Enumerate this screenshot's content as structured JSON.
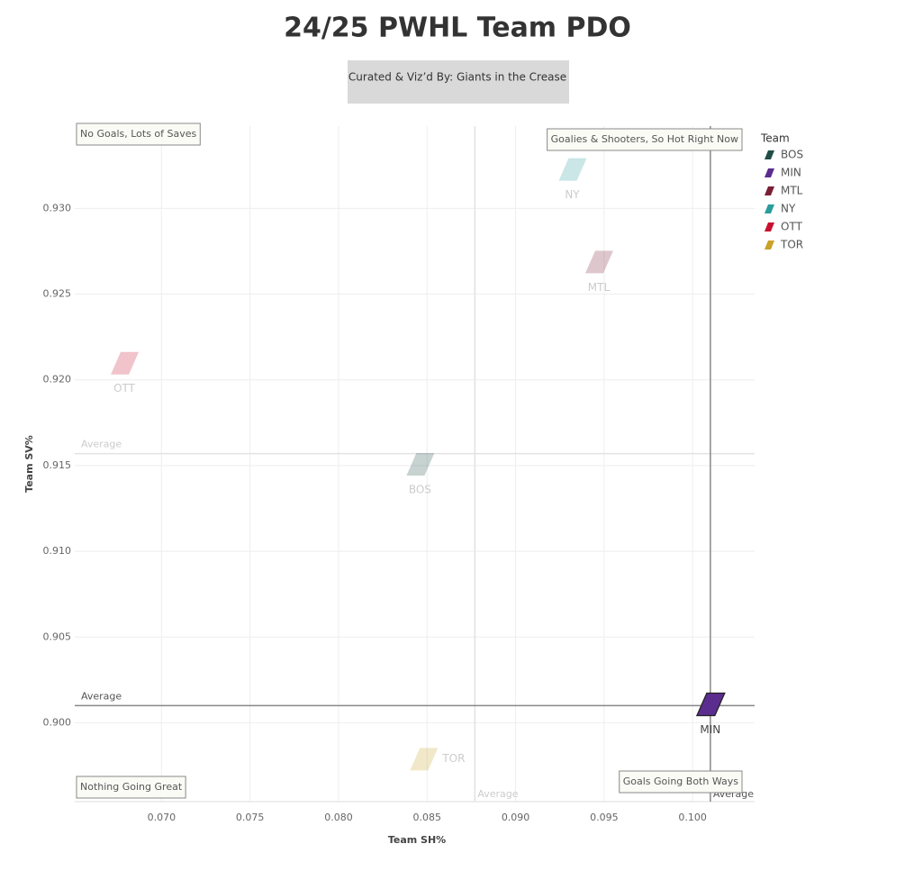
{
  "chart_data": {
    "type": "scatter",
    "title": "24/25 PWHL Team PDO",
    "subtitle": "Curated & Viz’d By: Giants in the Crease",
    "x_label": "Team SH%",
    "y_label": "Team SV%",
    "legend_title": "Team",
    "legend_position": "right",
    "grid": true,
    "xlim": [
      0.0651,
      0.1035
    ],
    "ylim": [
      0.8954,
      0.9348
    ],
    "xticks": [
      {
        "value": 0.07,
        "label": "0.070"
      },
      {
        "value": 0.075,
        "label": "0.075"
      },
      {
        "value": 0.08,
        "label": "0.080"
      },
      {
        "value": 0.085,
        "label": "0.085"
      },
      {
        "value": 0.09,
        "label": "0.090"
      },
      {
        "value": 0.095,
        "label": "0.095"
      },
      {
        "value": 0.1,
        "label": "0.100"
      }
    ],
    "yticks": [
      {
        "value": 0.9,
        "label": "0.900"
      },
      {
        "value": 0.905,
        "label": "0.905"
      },
      {
        "value": 0.91,
        "label": "0.910"
      },
      {
        "value": 0.915,
        "label": "0.915"
      },
      {
        "value": 0.92,
        "label": "0.920"
      },
      {
        "value": 0.925,
        "label": "0.925"
      },
      {
        "value": 0.93,
        "label": "0.930"
      }
    ],
    "series": [
      {
        "name": "BOS",
        "color": "#1f4e46",
        "x": [
          0.0846
        ],
        "values": [
          0.9151
        ],
        "highlighted": false
      },
      {
        "name": "MIN",
        "color": "#5b2d8e",
        "x": [
          0.101
        ],
        "values": [
          0.9011
        ],
        "highlighted": true
      },
      {
        "name": "MTL",
        "color": "#7a1e34",
        "x": [
          0.0947
        ],
        "values": [
          0.9269
        ],
        "highlighted": false
      },
      {
        "name": "NY",
        "color": "#2a9d9a",
        "x": [
          0.0932
        ],
        "values": [
          0.9323
        ],
        "highlighted": false
      },
      {
        "name": "OTT",
        "color": "#c8102e",
        "x": [
          0.0679
        ],
        "values": [
          0.921
        ],
        "highlighted": false
      },
      {
        "name": "TOR",
        "color": "#c9a227",
        "x": [
          0.0848
        ],
        "values": [
          0.8979
        ],
        "highlighted": false
      }
    ],
    "reference_lines": [
      {
        "axis": "x",
        "value": 0.0877,
        "label": "Average",
        "emphasis": false
      },
      {
        "axis": "y",
        "value": 0.9157,
        "label": "Average",
        "emphasis": false
      },
      {
        "axis": "x",
        "value": 0.101,
        "label": "Average",
        "emphasis": true
      },
      {
        "axis": "y",
        "value": 0.901,
        "label": "Average",
        "emphasis": true
      }
    ],
    "annotations": [
      {
        "text": "No Goals, Lots of Saves",
        "corner": "top-left"
      },
      {
        "text": "Goalies & Shooters, So Hot Right Now",
        "corner": "top-right"
      },
      {
        "text": "Nothing Going Great",
        "corner": "bottom-left"
      },
      {
        "text": "Goals Going Both Ways",
        "corner": "bottom-right"
      }
    ]
  }
}
